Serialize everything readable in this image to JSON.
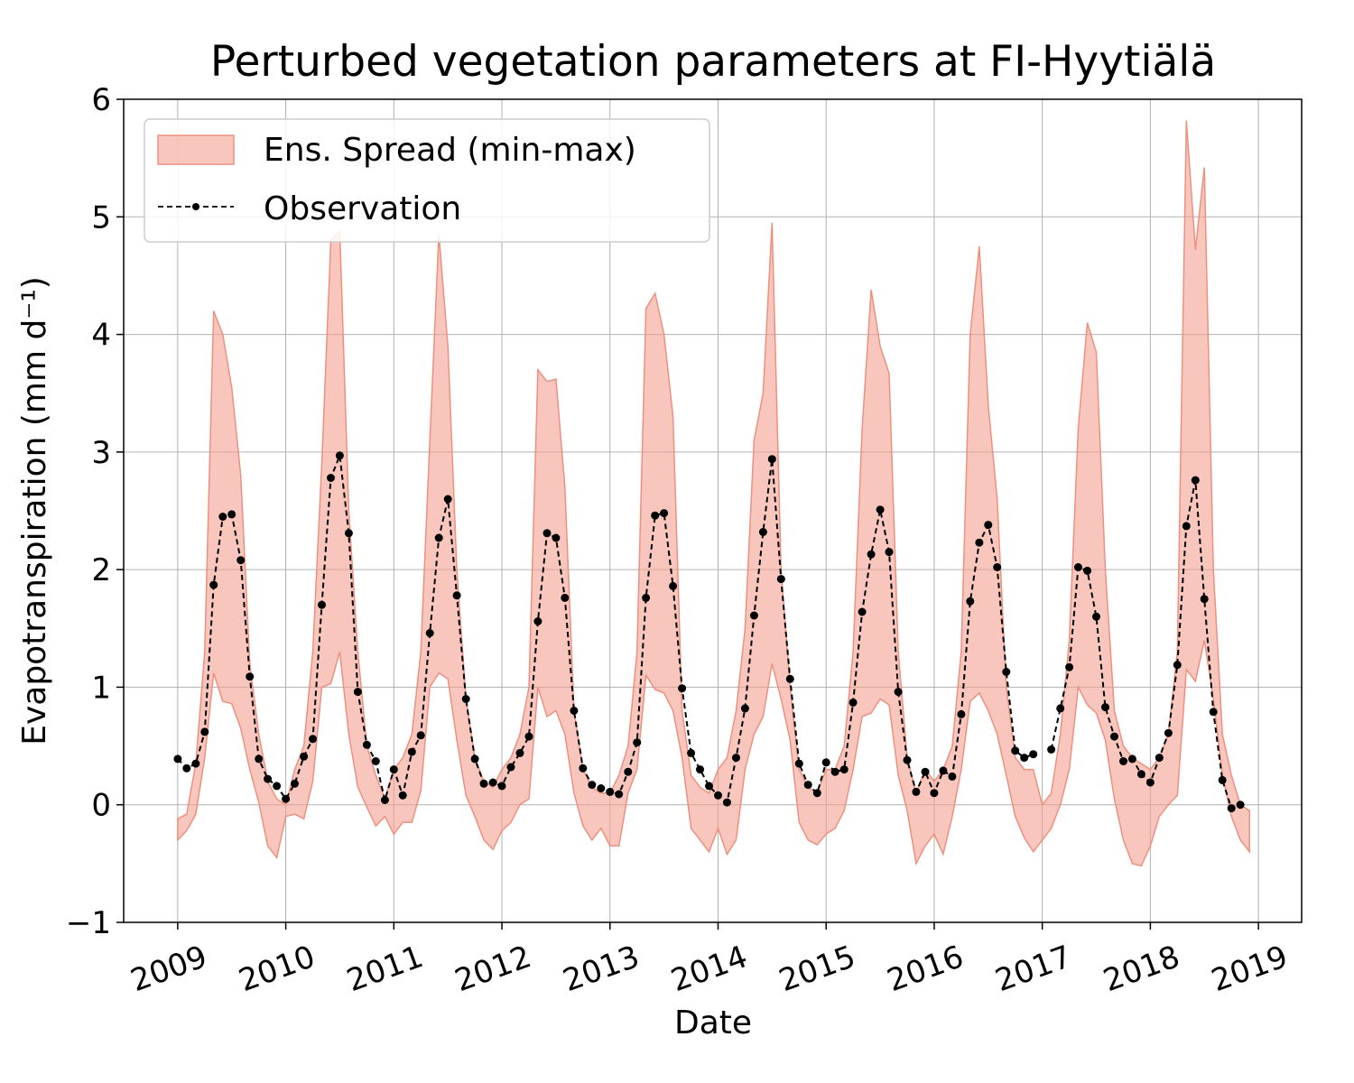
{
  "chart_data": {
    "type": "line",
    "title": "Perturbed vegetation parameters at FI-Hyytiälä",
    "xlabel": "Date",
    "ylabel": "Evapotranspiration  (mm d⁻¹)",
    "ylim": [
      -1,
      6
    ],
    "xlim": [
      2008.5,
      2019.4
    ],
    "grid": true,
    "legend_position": "top-left",
    "x_ticks": [
      2009,
      2010,
      2011,
      2012,
      2013,
      2014,
      2015,
      2016,
      2017,
      2018,
      2019
    ],
    "x_tick_labels": [
      "2009",
      "2010",
      "2011",
      "2012",
      "2013",
      "2014",
      "2015",
      "2016",
      "2017",
      "2018",
      "2019"
    ],
    "y_ticks": [
      -1,
      0,
      1,
      2,
      3,
      4,
      5,
      6
    ],
    "y_tick_labels": [
      "−1",
      "0",
      "1",
      "2",
      "3",
      "4",
      "5",
      "6"
    ],
    "colors": {
      "spread_fill": "#f4a090",
      "spread_edge": "#ee9080",
      "observation": "#000000"
    },
    "series": [
      {
        "name": "Ens. Spread (min-max)",
        "kind": "band",
        "x": [
          2009.0,
          2009.083,
          2009.167,
          2009.25,
          2009.333,
          2009.417,
          2009.5,
          2009.583,
          2009.667,
          2009.75,
          2009.833,
          2009.917,
          2010.0,
          2010.083,
          2010.167,
          2010.25,
          2010.333,
          2010.417,
          2010.5,
          2010.583,
          2010.667,
          2010.75,
          2010.833,
          2010.917,
          2011.0,
          2011.083,
          2011.167,
          2011.25,
          2011.333,
          2011.417,
          2011.5,
          2011.583,
          2011.667,
          2011.75,
          2011.833,
          2011.917,
          2012.0,
          2012.083,
          2012.167,
          2012.25,
          2012.333,
          2012.417,
          2012.5,
          2012.583,
          2012.667,
          2012.75,
          2012.833,
          2012.917,
          2013.0,
          2013.083,
          2013.167,
          2013.25,
          2013.333,
          2013.417,
          2013.5,
          2013.583,
          2013.667,
          2013.75,
          2013.833,
          2013.917,
          2014.0,
          2014.083,
          2014.167,
          2014.25,
          2014.333,
          2014.417,
          2014.5,
          2014.583,
          2014.667,
          2014.75,
          2014.833,
          2014.917,
          2015.0,
          2015.083,
          2015.167,
          2015.25,
          2015.333,
          2015.417,
          2015.5,
          2015.583,
          2015.667,
          2015.75,
          2015.833,
          2015.917,
          2016.0,
          2016.083,
          2016.167,
          2016.25,
          2016.333,
          2016.417,
          2016.5,
          2016.583,
          2016.667,
          2016.75,
          2016.833,
          2016.917,
          2017.0,
          2017.083,
          2017.167,
          2017.25,
          2017.333,
          2017.417,
          2017.5,
          2017.583,
          2017.667,
          2017.75,
          2017.833,
          2017.917,
          2018.0,
          2018.083,
          2018.167,
          2018.25,
          2018.333,
          2018.417,
          2018.5,
          2018.583,
          2018.667,
          2018.75,
          2018.833,
          2018.917
        ],
        "upper": [
          -0.12,
          -0.08,
          0.35,
          1.3,
          4.2,
          4.0,
          3.55,
          2.8,
          1.2,
          0.6,
          0.2,
          0.05,
          0.0,
          0.3,
          0.5,
          1.3,
          2.9,
          4.8,
          4.88,
          2.5,
          1.3,
          0.5,
          0.25,
          0.05,
          0.3,
          0.4,
          0.6,
          1.3,
          3.1,
          4.85,
          3.9,
          2.0,
          0.9,
          0.4,
          0.2,
          0.15,
          0.3,
          0.4,
          0.6,
          1.0,
          3.7,
          3.6,
          3.62,
          2.7,
          0.8,
          0.3,
          0.15,
          0.1,
          0.1,
          0.25,
          0.5,
          1.3,
          4.22,
          4.35,
          4.0,
          3.3,
          0.8,
          0.25,
          0.15,
          0.1,
          0.3,
          0.4,
          0.8,
          1.5,
          3.1,
          3.5,
          4.95,
          2.0,
          1.0,
          0.3,
          0.15,
          0.1,
          0.3,
          0.3,
          0.5,
          1.3,
          3.2,
          4.38,
          3.9,
          3.67,
          1.3,
          0.4,
          0.1,
          0.3,
          0.2,
          0.3,
          0.5,
          1.3,
          4.0,
          4.75,
          3.4,
          2.6,
          1.0,
          0.4,
          0.3,
          0.3,
          0.0,
          0.1,
          0.6,
          1.4,
          3.2,
          4.1,
          3.85,
          2.0,
          0.8,
          0.5,
          0.4,
          0.35,
          0.3,
          0.4,
          0.6,
          1.3,
          5.82,
          4.72,
          5.42,
          2.0,
          0.6,
          0.25,
          0.0,
          -0.05
        ],
        "lower": [
          -0.3,
          -0.22,
          -0.08,
          0.4,
          1.12,
          0.88,
          0.86,
          0.65,
          0.3,
          0.02,
          -0.35,
          -0.45,
          -0.1,
          -0.08,
          -0.12,
          0.2,
          1.0,
          1.03,
          1.3,
          0.6,
          0.15,
          -0.02,
          -0.18,
          -0.1,
          -0.25,
          -0.15,
          -0.15,
          0.12,
          1.0,
          1.12,
          1.07,
          0.55,
          0.08,
          -0.1,
          -0.3,
          -0.38,
          -0.22,
          -0.15,
          0.0,
          0.05,
          1.0,
          0.75,
          0.8,
          0.6,
          0.1,
          -0.18,
          -0.3,
          -0.2,
          -0.35,
          -0.35,
          0.1,
          0.3,
          1.1,
          0.98,
          0.95,
          0.8,
          0.4,
          -0.2,
          -0.3,
          -0.4,
          -0.2,
          -0.42,
          -0.3,
          0.3,
          0.6,
          0.75,
          1.2,
          0.9,
          0.55,
          -0.15,
          -0.3,
          -0.34,
          -0.25,
          -0.2,
          -0.05,
          0.3,
          0.75,
          0.78,
          0.9,
          0.85,
          0.25,
          -0.05,
          -0.5,
          -0.35,
          -0.25,
          -0.42,
          -0.1,
          0.3,
          0.88,
          0.95,
          0.8,
          0.6,
          0.25,
          -0.1,
          -0.28,
          -0.4,
          -0.3,
          -0.2,
          0.0,
          0.3,
          1.0,
          0.85,
          0.78,
          0.55,
          0.05,
          -0.3,
          -0.5,
          -0.52,
          -0.35,
          -0.1,
          0.0,
          0.08,
          1.15,
          1.05,
          1.4,
          0.9,
          0.25,
          -0.1,
          -0.3,
          -0.4
        ]
      },
      {
        "name": "Observation",
        "kind": "line-markers",
        "x": [
          2009.0,
          2009.083,
          2009.167,
          2009.25,
          2009.333,
          2009.417,
          2009.5,
          2009.583,
          2009.667,
          2009.75,
          2009.833,
          2009.917,
          2010.0,
          2010.083,
          2010.167,
          2010.25,
          2010.333,
          2010.417,
          2010.5,
          2010.583,
          2010.667,
          2010.75,
          2010.833,
          2010.917,
          2011.0,
          2011.083,
          2011.167,
          2011.25,
          2011.333,
          2011.417,
          2011.5,
          2011.583,
          2011.667,
          2011.75,
          2011.833,
          2011.917,
          2012.0,
          2012.083,
          2012.167,
          2012.25,
          2012.333,
          2012.417,
          2012.5,
          2012.583,
          2012.667,
          2012.75,
          2012.833,
          2012.917,
          2013.0,
          2013.083,
          2013.167,
          2013.25,
          2013.333,
          2013.417,
          2013.5,
          2013.583,
          2013.667,
          2013.75,
          2013.833,
          2013.917,
          2014.0,
          2014.083,
          2014.167,
          2014.25,
          2014.333,
          2014.417,
          2014.5,
          2014.583,
          2014.667,
          2014.75,
          2014.833,
          2014.917,
          2015.0,
          2015.083,
          2015.167,
          2015.25,
          2015.333,
          2015.417,
          2015.5,
          2015.583,
          2015.667,
          2015.75,
          2015.833,
          2015.917,
          2016.0,
          2016.083,
          2016.167,
          2016.25,
          2016.333,
          2016.417,
          2016.5,
          2016.583,
          2016.667,
          2016.75,
          2016.833,
          2016.917,
          2017.0,
          2017.083,
          2017.167,
          2017.25,
          2017.333,
          2017.417,
          2017.5,
          2017.583,
          2017.667,
          2017.75,
          2017.833,
          2017.917,
          2018.0,
          2018.083,
          2018.167,
          2018.25,
          2018.333,
          2018.417,
          2018.5,
          2018.583,
          2018.667,
          2018.75,
          2018.833,
          2018.917
        ],
        "values": [
          0.39,
          0.31,
          0.35,
          0.62,
          1.87,
          2.45,
          2.47,
          2.08,
          1.09,
          0.39,
          0.22,
          0.16,
          0.05,
          0.18,
          0.41,
          0.56,
          1.7,
          2.78,
          2.97,
          2.31,
          0.96,
          0.51,
          0.37,
          0.04,
          0.3,
          0.08,
          0.45,
          0.59,
          1.46,
          2.27,
          2.6,
          1.78,
          0.9,
          0.39,
          0.18,
          0.19,
          0.16,
          0.32,
          0.44,
          0.58,
          1.56,
          2.31,
          2.27,
          1.76,
          0.8,
          0.31,
          0.17,
          0.14,
          0.11,
          0.09,
          0.28,
          0.53,
          1.76,
          2.46,
          2.48,
          1.86,
          0.99,
          0.44,
          0.3,
          0.16,
          0.08,
          0.02,
          0.4,
          0.82,
          1.61,
          2.32,
          2.94,
          1.92,
          1.07,
          0.35,
          0.17,
          0.1,
          0.36,
          0.28,
          0.3,
          0.87,
          1.64,
          2.13,
          2.51,
          2.15,
          0.96,
          0.38,
          0.11,
          0.28,
          0.1,
          0.29,
          0.24,
          0.77,
          1.73,
          2.23,
          2.38,
          2.02,
          1.13,
          0.46,
          0.4,
          0.43,
          null,
          0.47,
          0.82,
          1.17,
          2.02,
          1.99,
          1.6,
          0.83,
          0.58,
          0.37,
          0.39,
          0.26,
          0.19,
          0.4,
          0.61,
          1.19,
          2.37,
          2.76,
          1.75,
          0.79,
          0.21,
          -0.03,
          0.0,
          null
        ]
      }
    ]
  },
  "legend": {
    "spread_label": "Ens. Spread (min-max)",
    "observation_label": "Observation"
  }
}
